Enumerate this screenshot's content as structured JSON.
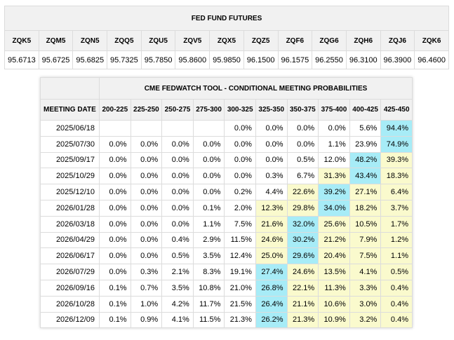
{
  "futures": {
    "title": "FED FUND FUTURES",
    "contracts": [
      "ZQK5",
      "ZQM5",
      "ZQN5",
      "ZQQ5",
      "ZQU5",
      "ZQV5",
      "ZQX5",
      "ZQZ5",
      "ZQF6",
      "ZQG6",
      "ZQH6",
      "ZQJ6",
      "ZQK6"
    ],
    "prices": [
      "95.6713",
      "95.6725",
      "95.6825",
      "95.7325",
      "95.7850",
      "95.8600",
      "95.9850",
      "96.1500",
      "96.1575",
      "96.2550",
      "96.3100",
      "96.3900",
      "96.4600"
    ]
  },
  "probabilities": {
    "title": "CME FEDWATCH TOOL - CONDITIONAL MEETING PROBABILITIES",
    "meeting_date_label": "MEETING DATE",
    "ranges": [
      "200-225",
      "225-250",
      "250-275",
      "275-300",
      "300-325",
      "325-350",
      "350-375",
      "375-400",
      "400-425",
      "425-450"
    ],
    "colors": {
      "highlight": "#a7ecf7",
      "secondary": "#fafacd"
    },
    "rows": [
      {
        "date": "2025/06/18",
        "values": [
          "",
          "",
          "",
          "",
          "0.0%",
          "0.0%",
          "0.0%",
          "0.0%",
          "5.6%",
          "94.4%"
        ],
        "styles": [
          "",
          "",
          "",
          "",
          "",
          "",
          "",
          "",
          "",
          "hl"
        ]
      },
      {
        "date": "2025/07/30",
        "values": [
          "0.0%",
          "0.0%",
          "0.0%",
          "0.0%",
          "0.0%",
          "0.0%",
          "0.0%",
          "1.1%",
          "23.9%",
          "74.9%"
        ],
        "styles": [
          "",
          "",
          "",
          "",
          "",
          "",
          "",
          "",
          "",
          "hl"
        ]
      },
      {
        "date": "2025/09/17",
        "values": [
          "0.0%",
          "0.0%",
          "0.0%",
          "0.0%",
          "0.0%",
          "0.0%",
          "0.5%",
          "12.0%",
          "48.2%",
          "39.3%"
        ],
        "styles": [
          "",
          "",
          "",
          "",
          "",
          "",
          "",
          "",
          "hl",
          "lo"
        ]
      },
      {
        "date": "2025/10/29",
        "values": [
          "0.0%",
          "0.0%",
          "0.0%",
          "0.0%",
          "0.0%",
          "0.3%",
          "6.7%",
          "31.3%",
          "43.4%",
          "18.3%"
        ],
        "styles": [
          "",
          "",
          "",
          "",
          "",
          "",
          "",
          "lo",
          "hl",
          "lo"
        ]
      },
      {
        "date": "2025/12/10",
        "values": [
          "0.0%",
          "0.0%",
          "0.0%",
          "0.0%",
          "0.2%",
          "4.4%",
          "22.6%",
          "39.2%",
          "27.1%",
          "6.4%"
        ],
        "styles": [
          "",
          "",
          "",
          "",
          "",
          "",
          "lo",
          "hl",
          "lo",
          "lo"
        ]
      },
      {
        "date": "2026/01/28",
        "values": [
          "0.0%",
          "0.0%",
          "0.0%",
          "0.1%",
          "2.0%",
          "12.3%",
          "29.8%",
          "34.0%",
          "18.2%",
          "3.7%"
        ],
        "styles": [
          "",
          "",
          "",
          "",
          "",
          "lo",
          "lo",
          "hl",
          "lo",
          "lo"
        ]
      },
      {
        "date": "2026/03/18",
        "values": [
          "0.0%",
          "0.0%",
          "0.0%",
          "1.1%",
          "7.5%",
          "21.6%",
          "32.0%",
          "25.6%",
          "10.5%",
          "1.7%"
        ],
        "styles": [
          "",
          "",
          "",
          "",
          "",
          "lo",
          "hl",
          "lo",
          "lo",
          "lo"
        ]
      },
      {
        "date": "2026/04/29",
        "values": [
          "0.0%",
          "0.0%",
          "0.4%",
          "2.9%",
          "11.5%",
          "24.6%",
          "30.2%",
          "21.2%",
          "7.9%",
          "1.2%"
        ],
        "styles": [
          "",
          "",
          "",
          "",
          "",
          "lo",
          "hl",
          "lo",
          "lo",
          "lo"
        ]
      },
      {
        "date": "2026/06/17",
        "values": [
          "0.0%",
          "0.0%",
          "0.5%",
          "3.5%",
          "12.4%",
          "25.0%",
          "29.6%",
          "20.4%",
          "7.5%",
          "1.1%"
        ],
        "styles": [
          "",
          "",
          "",
          "",
          "",
          "lo",
          "hl",
          "lo",
          "lo",
          "lo"
        ]
      },
      {
        "date": "2026/07/29",
        "values": [
          "0.0%",
          "0.3%",
          "2.1%",
          "8.3%",
          "19.1%",
          "27.4%",
          "24.6%",
          "13.5%",
          "4.1%",
          "0.5%"
        ],
        "styles": [
          "",
          "",
          "",
          "",
          "",
          "hl",
          "lo",
          "lo",
          "lo",
          "lo"
        ]
      },
      {
        "date": "2026/09/16",
        "values": [
          "0.1%",
          "0.7%",
          "3.5%",
          "10.8%",
          "21.0%",
          "26.8%",
          "22.1%",
          "11.3%",
          "3.3%",
          "0.4%"
        ],
        "styles": [
          "",
          "",
          "",
          "",
          "",
          "hl",
          "lo",
          "lo",
          "lo",
          "lo"
        ]
      },
      {
        "date": "2026/10/28",
        "values": [
          "0.1%",
          "1.0%",
          "4.2%",
          "11.7%",
          "21.5%",
          "26.4%",
          "21.1%",
          "10.6%",
          "3.0%",
          "0.4%"
        ],
        "styles": [
          "",
          "",
          "",
          "",
          "",
          "hl",
          "lo",
          "lo",
          "lo",
          "lo"
        ]
      },
      {
        "date": "2026/12/09",
        "values": [
          "0.1%",
          "0.9%",
          "4.1%",
          "11.5%",
          "21.3%",
          "26.2%",
          "21.3%",
          "10.9%",
          "3.2%",
          "0.4%"
        ],
        "styles": [
          "",
          "",
          "",
          "",
          "",
          "hl",
          "lo",
          "lo",
          "lo",
          "lo"
        ]
      }
    ]
  }
}
